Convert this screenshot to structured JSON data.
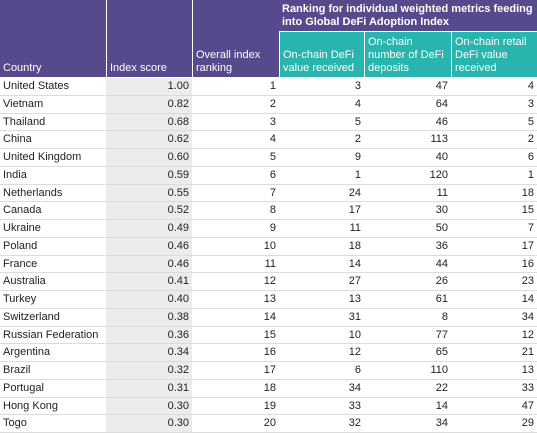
{
  "table": {
    "spanning_header": "Ranking for individual weighted metrics feeding into Global DeFi Adoption Index",
    "columns": [
      "Country",
      "Index score",
      "Overall index ranking",
      "On-chain DeFi value received",
      "On-chain number of DeFi deposits",
      "On-chain retail DeFi value received"
    ],
    "rows": [
      [
        "United States",
        "1.00",
        1,
        3,
        47,
        4
      ],
      [
        "Vietnam",
        "0.82",
        2,
        4,
        64,
        3
      ],
      [
        "Thailand",
        "0.68",
        3,
        5,
        46,
        5
      ],
      [
        "China",
        "0.62",
        4,
        2,
        113,
        2
      ],
      [
        "United Kingdom",
        "0.60",
        5,
        9,
        40,
        6
      ],
      [
        "India",
        "0.59",
        6,
        1,
        120,
        1
      ],
      [
        "Netherlands",
        "0.55",
        7,
        24,
        11,
        18
      ],
      [
        "Canada",
        "0.52",
        8,
        17,
        30,
        15
      ],
      [
        "Ukraine",
        "0.49",
        9,
        11,
        50,
        7
      ],
      [
        "Poland",
        "0.46",
        10,
        18,
        36,
        17
      ],
      [
        "France",
        "0.46",
        11,
        14,
        44,
        16
      ],
      [
        "Australia",
        "0.41",
        12,
        27,
        26,
        23
      ],
      [
        "Turkey",
        "0.40",
        13,
        13,
        61,
        14
      ],
      [
        "Switzerland",
        "0.38",
        14,
        31,
        8,
        34
      ],
      [
        "Russian Federation",
        "0.36",
        15,
        10,
        77,
        12
      ],
      [
        "Argentina",
        "0.34",
        16,
        12,
        65,
        21
      ],
      [
        "Brazil",
        "0.32",
        17,
        6,
        110,
        13
      ],
      [
        "Portugal",
        "0.31",
        18,
        34,
        22,
        33
      ],
      [
        "Hong Kong",
        "0.30",
        19,
        33,
        14,
        47
      ],
      [
        "Togo",
        "0.30",
        20,
        32,
        34,
        29
      ]
    ]
  }
}
